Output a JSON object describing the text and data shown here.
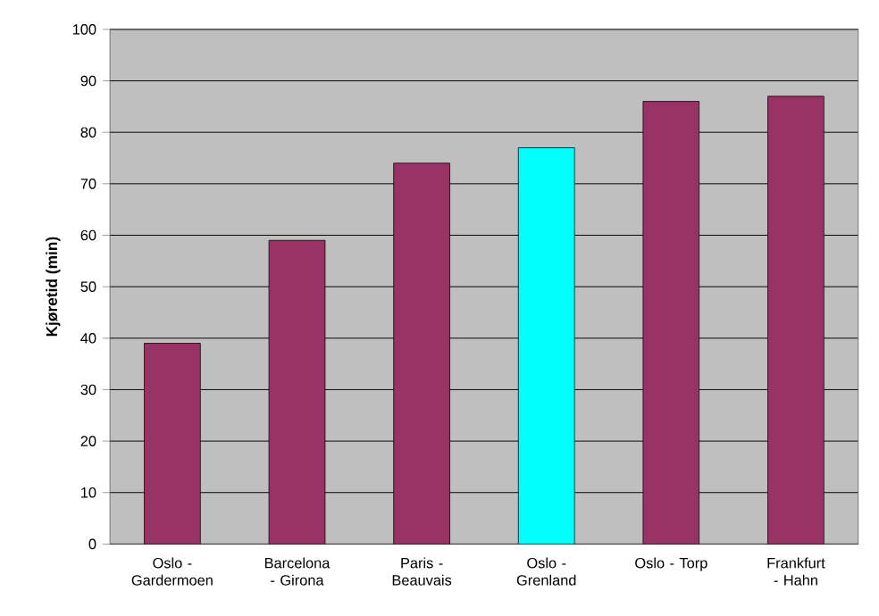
{
  "chart_data": {
    "type": "bar",
    "ylabel": "Kjøretid (min)",
    "categories": [
      "Oslo - Gardermoen",
      "Barcelona - Girona",
      "Paris - Beauvais",
      "Oslo - Grenland",
      "Oslo - Torp",
      "Frankfurt - Hahn"
    ],
    "values": [
      39,
      59,
      74,
      77,
      86,
      87
    ],
    "colors": [
      "#993366",
      "#993366",
      "#993366",
      "#00ffff",
      "#993366",
      "#993366"
    ],
    "ylim": [
      0,
      100
    ],
    "yticks": [
      0,
      10,
      20,
      30,
      40,
      50,
      60,
      70,
      80,
      90,
      100
    ],
    "grid": "y"
  }
}
